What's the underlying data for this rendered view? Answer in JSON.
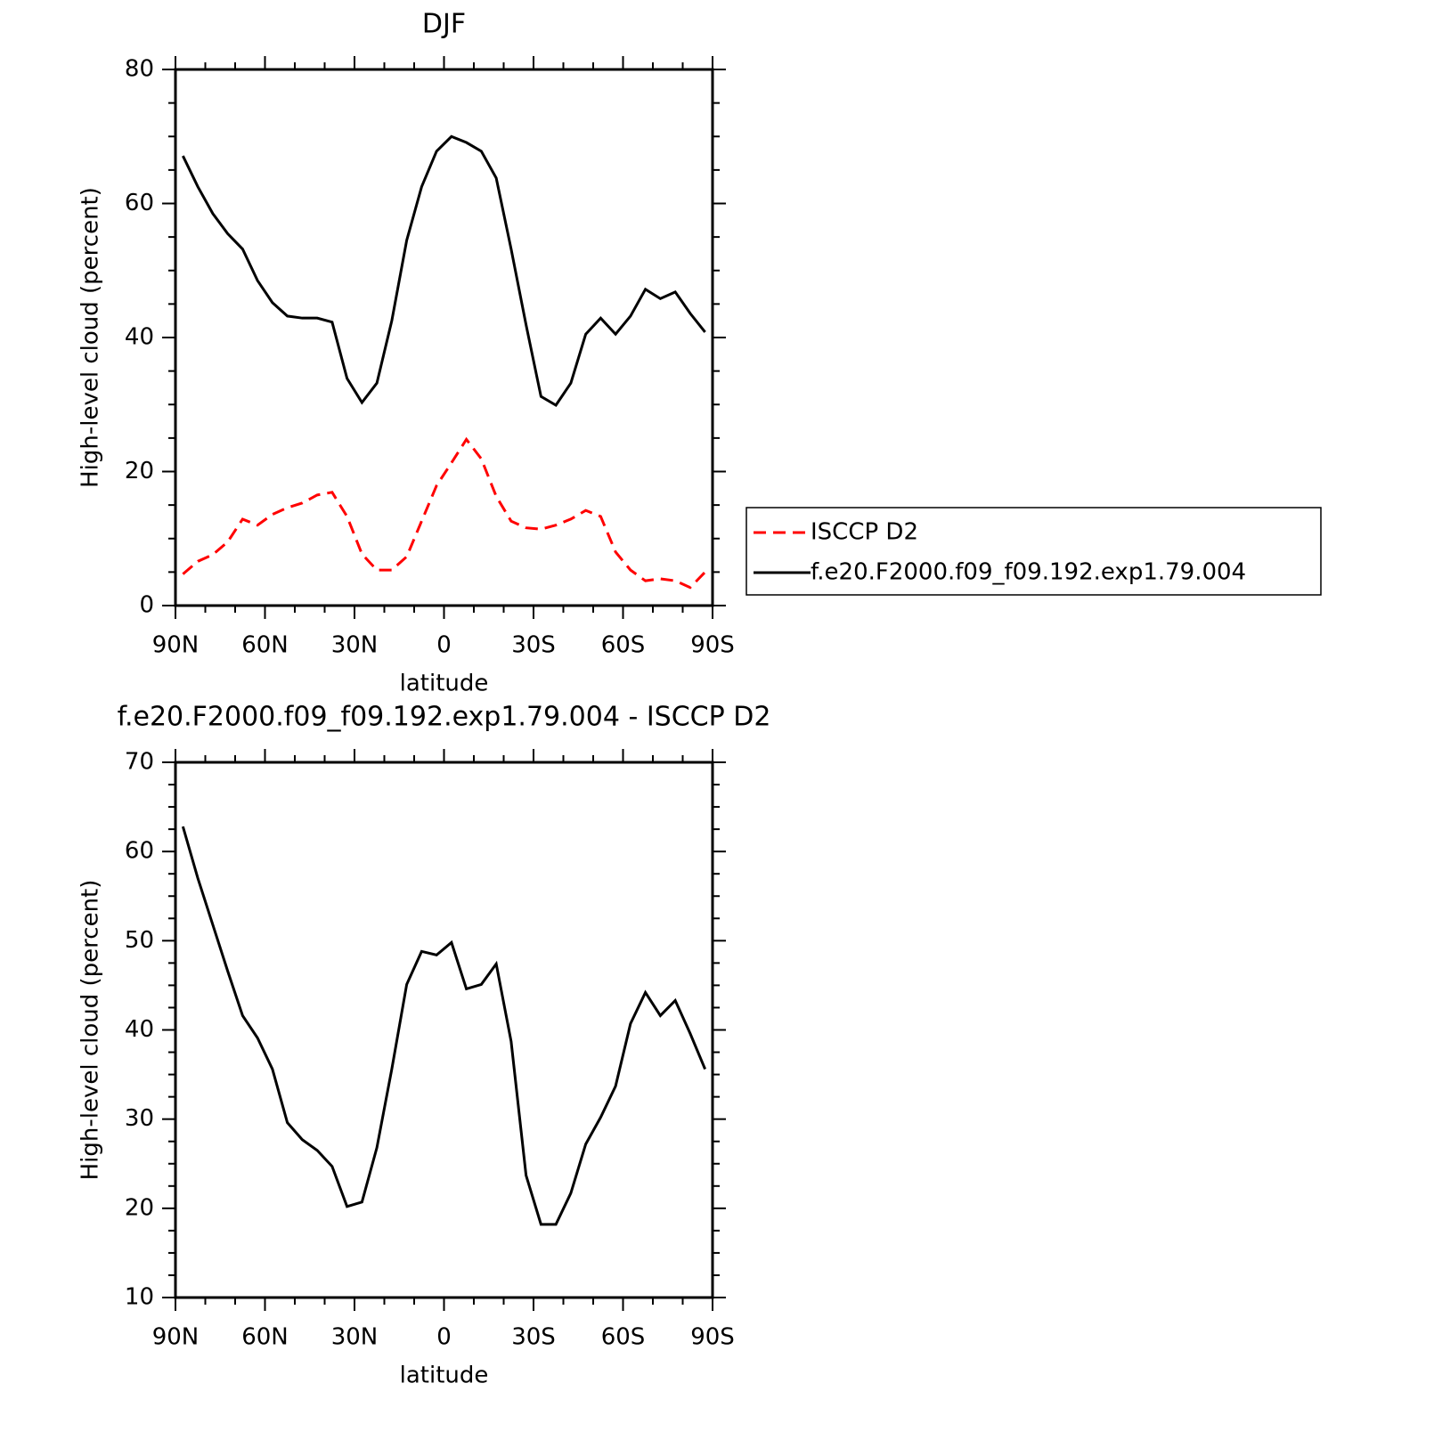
{
  "chart_data": [
    {
      "type": "line",
      "title": "DJF",
      "xlabel": "latitude",
      "ylabel": "High-level cloud (percent)",
      "x": [
        87.5,
        82.5,
        77.5,
        72.5,
        67.5,
        62.5,
        57.5,
        52.5,
        47.5,
        42.5,
        37.5,
        32.5,
        27.5,
        22.5,
        17.5,
        12.5,
        7.5,
        2.5,
        -2.5,
        -7.5,
        -12.5,
        -17.5,
        -22.5,
        -27.5,
        -32.5,
        -37.5,
        -42.5,
        -47.5,
        -52.5,
        -57.5,
        -62.5,
        -67.5,
        -72.5,
        -77.5,
        -82.5,
        -87.5
      ],
      "xlim": [
        90,
        -90
      ],
      "xticks": [
        {
          "value": 90,
          "label": "90N"
        },
        {
          "value": 60,
          "label": "60N"
        },
        {
          "value": 30,
          "label": "30N"
        },
        0,
        {
          "value": -30,
          "label": "30S"
        },
        {
          "value": -60,
          "label": "60S"
        },
        {
          "value": -90,
          "label": "90S"
        }
      ],
      "ylim": [
        0,
        80
      ],
      "yticks": [
        0,
        20,
        40,
        60,
        80
      ],
      "legend": "right",
      "series": [
        {
          "name": "ISCCP D2",
          "color": "#ff0000",
          "linestyle": "dashed",
          "values": [
            4.7,
            6.6,
            7.6,
            9.5,
            12.9,
            12.0,
            13.6,
            14.6,
            15.3,
            16.5,
            16.9,
            13.3,
            7.7,
            5.3,
            5.3,
            7.3,
            12.6,
            17.9,
            21.3,
            24.8,
            21.9,
            16.3,
            12.6,
            11.6,
            11.4,
            12.0,
            12.9,
            14.2,
            13.3,
            8.0,
            5.3,
            3.7,
            4.0,
            3.7,
            2.7,
            5.0
          ]
        },
        {
          "name": "f.e20.F2000.f09_f09.192.exp1.79.004",
          "color": "#000000",
          "linestyle": "solid",
          "values": [
            67.1,
            62.5,
            58.5,
            55.5,
            53.2,
            48.5,
            45.2,
            43.2,
            42.9,
            42.9,
            42.3,
            33.9,
            30.3,
            33.2,
            42.5,
            54.5,
            62.5,
            67.8,
            70.0,
            69.1,
            67.8,
            63.8,
            53.2,
            41.9,
            31.2,
            29.9,
            33.2,
            40.5,
            42.9,
            40.5,
            43.2,
            47.2,
            45.8,
            46.8,
            43.6,
            40.8
          ]
        }
      ]
    },
    {
      "type": "line",
      "title": "f.e20.F2000.f09_f09.192.exp1.79.004 - ISCCP D2",
      "xlabel": "latitude",
      "ylabel": "High-level cloud (percent)",
      "x": [
        87.5,
        82.5,
        77.5,
        72.5,
        67.5,
        62.5,
        57.5,
        52.5,
        47.5,
        42.5,
        37.5,
        32.5,
        27.5,
        22.5,
        17.5,
        12.5,
        7.5,
        2.5,
        -2.5,
        -7.5,
        -12.5,
        -17.5,
        -22.5,
        -27.5,
        -32.5,
        -37.5,
        -42.5,
        -47.5,
        -52.5,
        -57.5,
        -62.5,
        -67.5,
        -72.5,
        -77.5,
        -82.5,
        -87.5
      ],
      "xlim": [
        90,
        -90
      ],
      "xticks": [
        {
          "value": 90,
          "label": "90N"
        },
        {
          "value": 60,
          "label": "60N"
        },
        {
          "value": 30,
          "label": "30N"
        },
        0,
        {
          "value": -30,
          "label": "30S"
        },
        {
          "value": -60,
          "label": "60S"
        },
        {
          "value": -90,
          "label": "90S"
        }
      ],
      "ylim": [
        10,
        70
      ],
      "yticks": [
        10,
        20,
        30,
        40,
        50,
        60,
        70
      ],
      "series": [
        {
          "color": "#000000",
          "linestyle": "solid",
          "values": [
            62.8,
            57.0,
            51.8,
            46.6,
            41.6,
            39.1,
            35.6,
            29.6,
            27.7,
            26.5,
            24.7,
            20.2,
            20.7,
            26.8,
            35.6,
            45.1,
            48.8,
            48.4,
            49.8,
            44.6,
            45.1,
            47.4,
            38.7,
            23.7,
            18.2,
            18.2,
            21.7,
            27.2,
            30.2,
            33.7,
            40.7,
            44.2,
            41.6,
            43.3,
            39.6,
            35.6
          ]
        }
      ]
    }
  ]
}
